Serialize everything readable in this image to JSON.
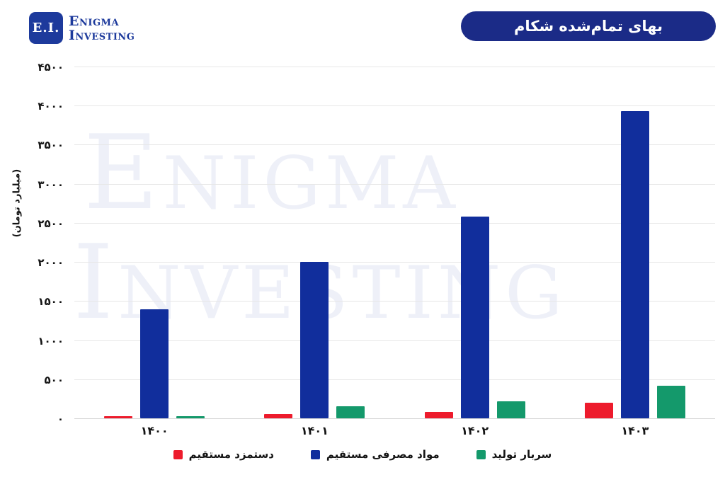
{
  "header": {
    "logo": {
      "monogram": "E.I.",
      "brand_line1": "Enigma",
      "brand_line2": "Investing"
    },
    "title_badge": "بهای تمام‌شده شکام"
  },
  "watermark": {
    "line1": "Enigma",
    "line2": "Investing"
  },
  "chart_data": {
    "type": "bar",
    "title": "بهای تمام‌شده شکام",
    "xlabel": "",
    "ylabel": "(میلیارد تومان)",
    "ylim": [
      0,
      4500
    ],
    "ytick_step": 500,
    "grid": true,
    "legend_position": "bottom",
    "categories": [
      "۱۴۰۰",
      "۱۴۰۱",
      "۱۴۰۲",
      "۱۴۰۳"
    ],
    "categories_latin": [
      "1400",
      "1401",
      "1402",
      "1403"
    ],
    "yticks": [
      {
        "value": 0,
        "label": "۰"
      },
      {
        "value": 500,
        "label": "۵۰۰"
      },
      {
        "value": 1000,
        "label": "۱۰۰۰"
      },
      {
        "value": 1500,
        "label": "۱۵۰۰"
      },
      {
        "value": 2000,
        "label": "۲۰۰۰"
      },
      {
        "value": 2500,
        "label": "۲۵۰۰"
      },
      {
        "value": 3000,
        "label": "۳۰۰۰"
      },
      {
        "value": 3500,
        "label": "۳۵۰۰"
      },
      {
        "value": 4000,
        "label": "۴۰۰۰"
      },
      {
        "value": 4500,
        "label": "۴۵۰۰"
      }
    ],
    "series": [
      {
        "name": "دستمزد مستقیم",
        "slug": "direct-wages",
        "color": "#ed1b2c",
        "values": [
          30,
          50,
          80,
          200
        ]
      },
      {
        "name": "مواد مصرفی مستقیم",
        "slug": "direct-materials",
        "color": "#112e9c",
        "values": [
          1390,
          2000,
          2580,
          3930
        ]
      },
      {
        "name": "سربار تولید",
        "slug": "production-overhead",
        "color": "#14996b",
        "values": [
          25,
          155,
          220,
          415
        ]
      }
    ]
  },
  "colors": {
    "badge_navy": "#1b2b87",
    "logo_navy": "#1d3a9c",
    "bar_red": "#ed1b2c",
    "bar_blue": "#112e9c",
    "bar_green": "#14996b",
    "watermark": "#eef0f8",
    "gridline": "#e7e7e7"
  }
}
